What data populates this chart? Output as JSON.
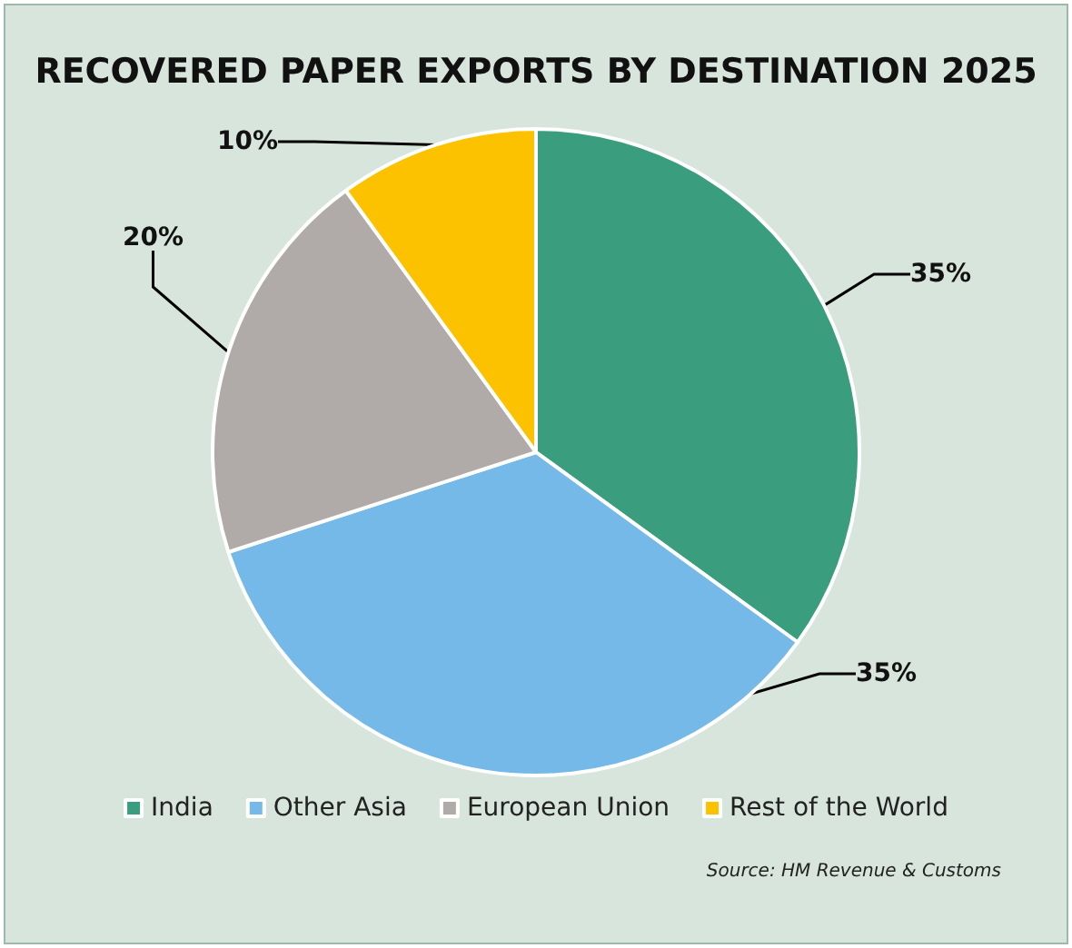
{
  "chart_data": {
    "type": "pie",
    "title": "RECOVERED PAPER EXPORTS BY DESTINATION 2025",
    "categories": [
      "India",
      "Other Asia",
      "European Union",
      "Rest of the World"
    ],
    "values": [
      35,
      35,
      20,
      10
    ],
    "colors": [
      "#3a9e7e",
      "#74b9e7",
      "#b0aba8",
      "#fcc200"
    ],
    "value_labels": [
      "35%",
      "35%",
      "20%",
      "10%"
    ],
    "legend": "bottom",
    "annotations": [
      "Source: HM Revenue & Customs"
    ]
  }
}
